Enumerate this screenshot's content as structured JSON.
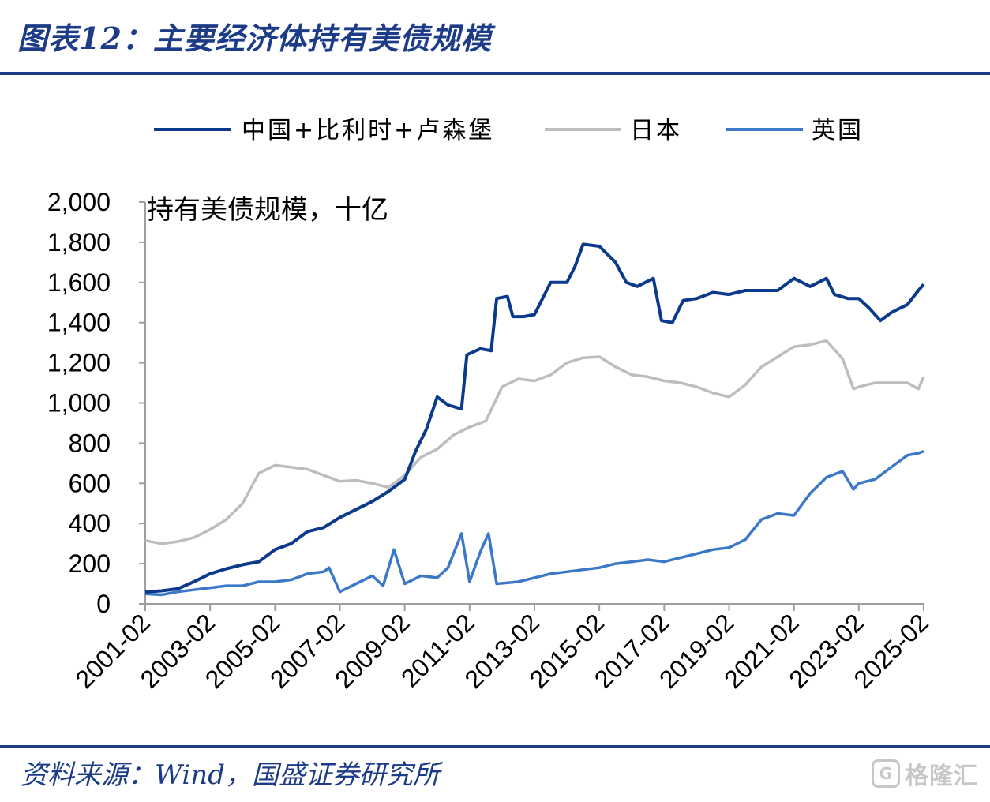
{
  "header": {
    "title": "图表12：主要经济体持有美债规模"
  },
  "footer": {
    "source": "资料来源：Wind，国盛证券研究所"
  },
  "watermark": {
    "glyph": "G",
    "text": "格隆汇"
  },
  "chart_data": {
    "type": "line",
    "title": "",
    "ylabel": "持有美债规模，十亿",
    "xlabel": "",
    "ylim": [
      0,
      2000
    ],
    "y_ticks": [
      "0",
      "200",
      "400",
      "600",
      "800",
      "1,000",
      "1,200",
      "1,400",
      "1,600",
      "1,800",
      "2,000"
    ],
    "x_ticks": [
      "2001-02",
      "2003-02",
      "2005-02",
      "2007-02",
      "2009-02",
      "2011-02",
      "2013-02",
      "2015-02",
      "2017-02",
      "2019-02",
      "2021-02",
      "2023-02",
      "2025-02"
    ],
    "xlim": [
      "2001-02",
      "2025-02"
    ],
    "legend_position": "top",
    "grid": false,
    "series": [
      {
        "name": "中国+比利时+卢森堡",
        "color": "#0b3a8c",
        "points": [
          [
            "2001-02",
            60
          ],
          [
            "2001-08",
            65
          ],
          [
            "2002-02",
            75
          ],
          [
            "2002-08",
            110
          ],
          [
            "2003-02",
            150
          ],
          [
            "2003-08",
            175
          ],
          [
            "2004-02",
            195
          ],
          [
            "2004-08",
            210
          ],
          [
            "2005-02",
            270
          ],
          [
            "2005-08",
            300
          ],
          [
            "2006-02",
            360
          ],
          [
            "2006-08",
            380
          ],
          [
            "2007-02",
            430
          ],
          [
            "2007-08",
            470
          ],
          [
            "2008-02",
            510
          ],
          [
            "2008-08",
            560
          ],
          [
            "2009-02",
            620
          ],
          [
            "2009-06",
            760
          ],
          [
            "2009-10",
            870
          ],
          [
            "2010-02",
            1030
          ],
          [
            "2010-06",
            990
          ],
          [
            "2010-11",
            970
          ],
          [
            "2011-01",
            1240
          ],
          [
            "2011-06",
            1270
          ],
          [
            "2011-10",
            1260
          ],
          [
            "2011-12",
            1520
          ],
          [
            "2012-04",
            1530
          ],
          [
            "2012-06",
            1430
          ],
          [
            "2012-10",
            1430
          ],
          [
            "2013-02",
            1440
          ],
          [
            "2013-08",
            1600
          ],
          [
            "2014-02",
            1600
          ],
          [
            "2014-05",
            1680
          ],
          [
            "2014-08",
            1790
          ],
          [
            "2015-02",
            1780
          ],
          [
            "2015-08",
            1700
          ],
          [
            "2015-12",
            1600
          ],
          [
            "2016-04",
            1580
          ],
          [
            "2016-10",
            1620
          ],
          [
            "2017-01",
            1410
          ],
          [
            "2017-05",
            1400
          ],
          [
            "2017-09",
            1510
          ],
          [
            "2018-02",
            1520
          ],
          [
            "2018-08",
            1550
          ],
          [
            "2019-02",
            1540
          ],
          [
            "2019-08",
            1560
          ],
          [
            "2020-02",
            1560
          ],
          [
            "2020-08",
            1560
          ],
          [
            "2021-02",
            1620
          ],
          [
            "2021-08",
            1580
          ],
          [
            "2022-02",
            1620
          ],
          [
            "2022-05",
            1540
          ],
          [
            "2022-10",
            1520
          ],
          [
            "2023-02",
            1520
          ],
          [
            "2023-06",
            1470
          ],
          [
            "2023-10",
            1410
          ],
          [
            "2024-02",
            1450
          ],
          [
            "2024-08",
            1490
          ],
          [
            "2024-12",
            1560
          ],
          [
            "2025-02",
            1590
          ]
        ]
      },
      {
        "name": "日本",
        "color": "#bdbdbd",
        "points": [
          [
            "2001-02",
            315
          ],
          [
            "2001-08",
            300
          ],
          [
            "2002-02",
            310
          ],
          [
            "2002-08",
            330
          ],
          [
            "2003-02",
            370
          ],
          [
            "2003-08",
            420
          ],
          [
            "2004-02",
            500
          ],
          [
            "2004-08",
            650
          ],
          [
            "2005-02",
            690
          ],
          [
            "2005-08",
            680
          ],
          [
            "2006-02",
            670
          ],
          [
            "2006-08",
            640
          ],
          [
            "2007-02",
            610
          ],
          [
            "2007-08",
            615
          ],
          [
            "2008-02",
            600
          ],
          [
            "2008-08",
            580
          ],
          [
            "2009-02",
            640
          ],
          [
            "2009-08",
            730
          ],
          [
            "2010-02",
            770
          ],
          [
            "2010-08",
            840
          ],
          [
            "2011-02",
            880
          ],
          [
            "2011-08",
            910
          ],
          [
            "2012-02",
            1080
          ],
          [
            "2012-08",
            1120
          ],
          [
            "2013-02",
            1110
          ],
          [
            "2013-08",
            1140
          ],
          [
            "2014-02",
            1200
          ],
          [
            "2014-08",
            1225
          ],
          [
            "2015-02",
            1230
          ],
          [
            "2015-08",
            1180
          ],
          [
            "2016-02",
            1140
          ],
          [
            "2016-08",
            1130
          ],
          [
            "2017-02",
            1110
          ],
          [
            "2017-08",
            1100
          ],
          [
            "2018-02",
            1080
          ],
          [
            "2018-08",
            1050
          ],
          [
            "2019-02",
            1030
          ],
          [
            "2019-08",
            1090
          ],
          [
            "2020-02",
            1180
          ],
          [
            "2020-08",
            1230
          ],
          [
            "2021-02",
            1280
          ],
          [
            "2021-08",
            1290
          ],
          [
            "2022-02",
            1310
          ],
          [
            "2022-08",
            1220
          ],
          [
            "2022-12",
            1070
          ],
          [
            "2023-02",
            1080
          ],
          [
            "2023-08",
            1100
          ],
          [
            "2024-02",
            1100
          ],
          [
            "2024-08",
            1100
          ],
          [
            "2024-12",
            1070
          ],
          [
            "2025-02",
            1130
          ]
        ]
      },
      {
        "name": "英国",
        "color": "#3c78c8",
        "points": [
          [
            "2001-02",
            50
          ],
          [
            "2001-08",
            45
          ],
          [
            "2002-02",
            60
          ],
          [
            "2002-08",
            70
          ],
          [
            "2003-02",
            80
          ],
          [
            "2003-08",
            90
          ],
          [
            "2004-02",
            90
          ],
          [
            "2004-08",
            110
          ],
          [
            "2005-02",
            110
          ],
          [
            "2005-08",
            120
          ],
          [
            "2006-02",
            150
          ],
          [
            "2006-08",
            160
          ],
          [
            "2006-10",
            180
          ],
          [
            "2007-02",
            60
          ],
          [
            "2007-08",
            100
          ],
          [
            "2008-02",
            140
          ],
          [
            "2008-06",
            90
          ],
          [
            "2008-10",
            270
          ],
          [
            "2009-02",
            100
          ],
          [
            "2009-08",
            140
          ],
          [
            "2010-02",
            130
          ],
          [
            "2010-06",
            180
          ],
          [
            "2010-11",
            350
          ],
          [
            "2011-02",
            110
          ],
          [
            "2011-06",
            260
          ],
          [
            "2011-09",
            350
          ],
          [
            "2011-12",
            100
          ],
          [
            "2012-08",
            110
          ],
          [
            "2013-02",
            130
          ],
          [
            "2013-08",
            150
          ],
          [
            "2014-02",
            160
          ],
          [
            "2014-08",
            170
          ],
          [
            "2015-02",
            180
          ],
          [
            "2015-08",
            200
          ],
          [
            "2016-02",
            210
          ],
          [
            "2016-08",
            220
          ],
          [
            "2017-02",
            210
          ],
          [
            "2017-08",
            230
          ],
          [
            "2018-02",
            250
          ],
          [
            "2018-08",
            270
          ],
          [
            "2019-02",
            280
          ],
          [
            "2019-08",
            320
          ],
          [
            "2020-02",
            420
          ],
          [
            "2020-08",
            450
          ],
          [
            "2021-02",
            440
          ],
          [
            "2021-08",
            550
          ],
          [
            "2022-02",
            630
          ],
          [
            "2022-08",
            660
          ],
          [
            "2022-12",
            570
          ],
          [
            "2023-02",
            600
          ],
          [
            "2023-08",
            620
          ],
          [
            "2024-02",
            680
          ],
          [
            "2024-08",
            740
          ],
          [
            "2024-12",
            750
          ],
          [
            "2025-02",
            760
          ]
        ]
      }
    ]
  }
}
